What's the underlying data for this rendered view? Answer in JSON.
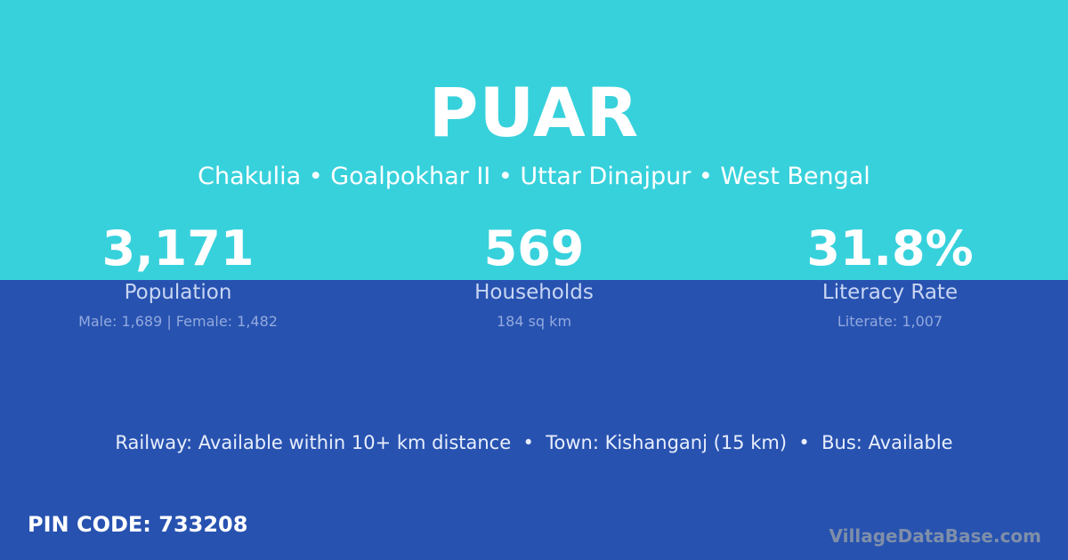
{
  "title": "PUAR",
  "breadcrumb": "Chakulia • Goalpokhar II • Uttar Dinajpur • West Bengal",
  "stats": [
    {
      "value": "3,171",
      "label": "Population",
      "detail": "Male: 1,689 | Female: 1,482"
    },
    {
      "value": "569",
      "label": "Households",
      "detail": "184 sq km"
    },
    {
      "value": "31.8%",
      "label": "Literacy Rate",
      "detail": "Literate: 1,007"
    }
  ],
  "connectivity": "Railway: Available within 10+ km distance  •  Town: Kishanganj (15 km)  •  Bus: Available",
  "pin": "PIN CODE: 733208",
  "brand": "VillageDataBase.com",
  "colors": {
    "top": "#37d1dc",
    "bottom": "#2752b0"
  }
}
